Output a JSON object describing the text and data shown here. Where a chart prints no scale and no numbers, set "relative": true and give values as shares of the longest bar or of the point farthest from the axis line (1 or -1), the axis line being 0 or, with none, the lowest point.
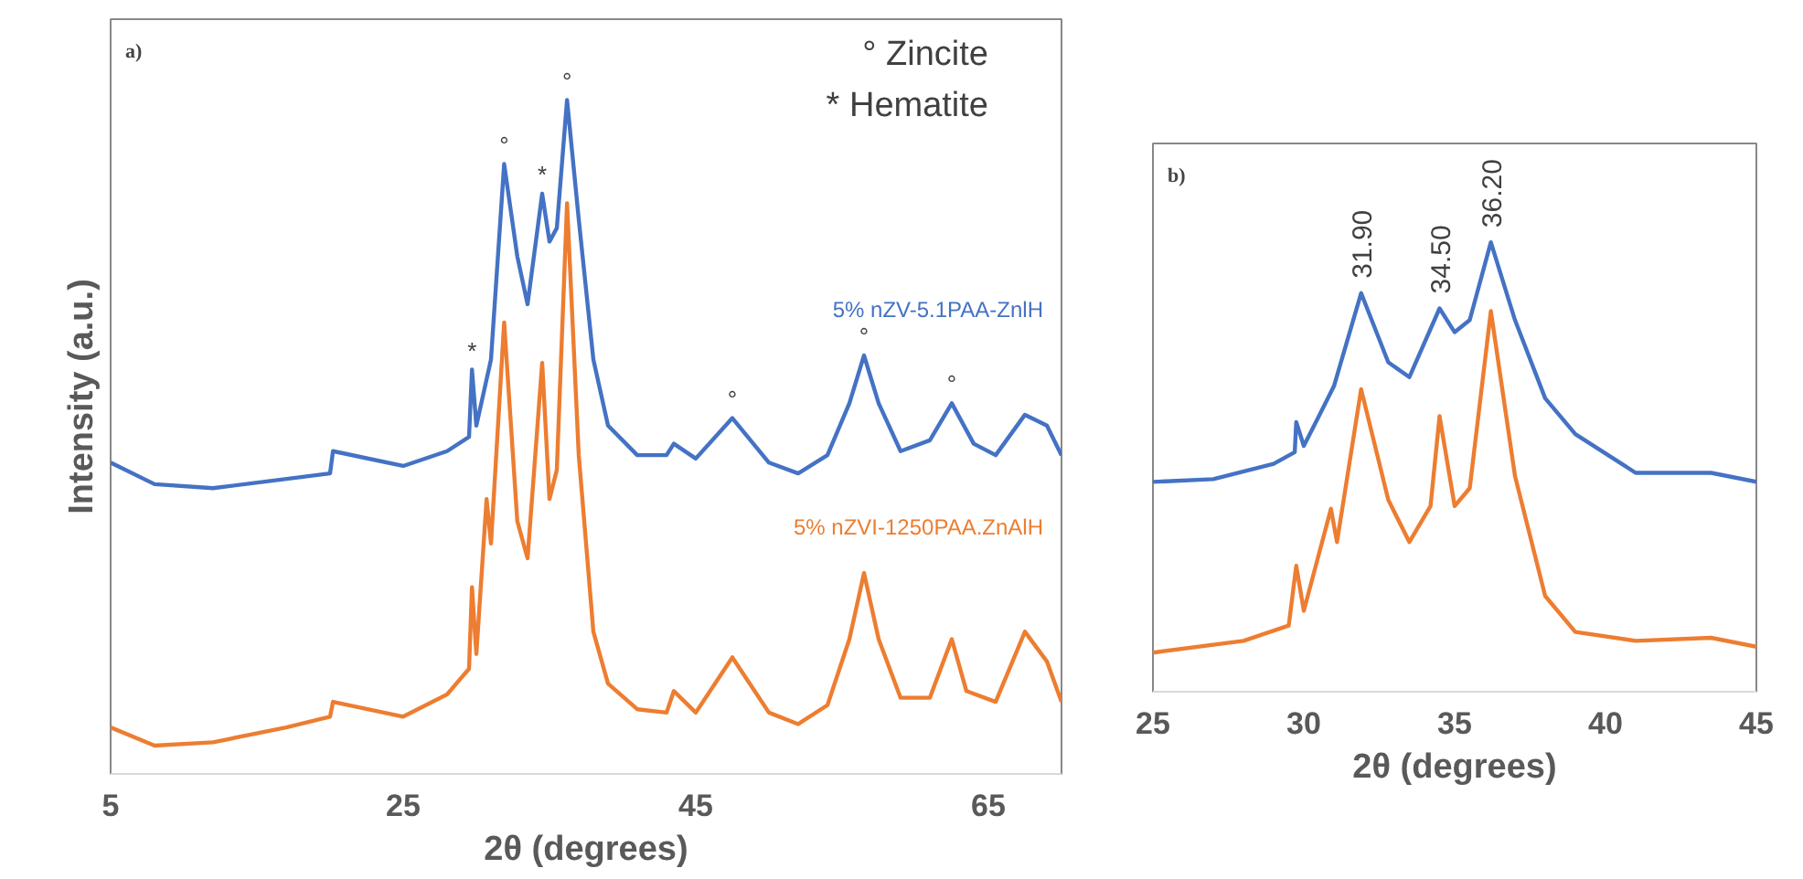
{
  "chart_data": [
    {
      "type": "line",
      "relative": true,
      "xlabel": "2θ (degrees)",
      "ylabel": "Intensity (a.u.)",
      "xlim": [
        5,
        70
      ],
      "xticks": [
        5,
        25,
        45,
        65
      ],
      "grid": false,
      "annotations": [
        "a)",
        "° Zincite",
        "* Hematite",
        {
          "text": "*",
          "x": 29.7,
          "y": 0.6
        },
        {
          "text": "°",
          "x": 31.9,
          "y": 0.905
        },
        {
          "text": "*",
          "x": 34.5,
          "y": 0.861
        },
        {
          "text": "°",
          "x": 36.2,
          "y": 1.0
        },
        {
          "text": "°",
          "x": 47.5,
          "y": 0.528
        },
        {
          "text": "°",
          "x": 56.5,
          "y": 0.621
        },
        {
          "text": "°",
          "x": 62.5,
          "y": 0.55
        }
      ],
      "series": [
        {
          "name": "5% nZV-5.1PAA-ZnlH",
          "color": "#4472c4",
          "x": [
            5,
            8,
            12,
            20,
            20.2,
            25,
            28,
            29.5,
            29.7,
            30,
            31,
            31.9,
            32.8,
            33.5,
            34.5,
            35,
            35.5,
            36.2,
            37,
            38,
            39,
            41,
            43,
            43.5,
            45,
            47.5,
            50,
            52,
            54,
            55.5,
            56.5,
            57.5,
            59,
            61,
            62.5,
            64,
            65.5,
            67.5,
            69,
            70
          ],
          "values": [
            0.462,
            0.43,
            0.424,
            0.446,
            0.479,
            0.457,
            0.479,
            0.5,
            0.6,
            0.517,
            0.615,
            0.905,
            0.768,
            0.697,
            0.861,
            0.79,
            0.81,
            1.0,
            0.823,
            0.615,
            0.517,
            0.473,
            0.473,
            0.49,
            0.468,
            0.528,
            0.462,
            0.446,
            0.473,
            0.55,
            0.621,
            0.55,
            0.479,
            0.495,
            0.55,
            0.49,
            0.473,
            0.533,
            0.517,
            0.473
          ]
        },
        {
          "name": "5% nZVI-1250PAA.ZnAlH",
          "color": "#ed7d31",
          "x": [
            5,
            8,
            12,
            17,
            20,
            20.2,
            25,
            28,
            29.5,
            29.7,
            30,
            30.7,
            31,
            31.9,
            32.8,
            33.5,
            34.5,
            35,
            35.5,
            36.2,
            37,
            38,
            39,
            41,
            43,
            43.5,
            45,
            47.5,
            50,
            52,
            54,
            55.5,
            56.5,
            57.5,
            59,
            61,
            62.5,
            63.5,
            65.5,
            67.5,
            69,
            70
          ],
          "values": [
            0.069,
            0.042,
            0.047,
            0.069,
            0.085,
            0.107,
            0.085,
            0.118,
            0.156,
            0.277,
            0.178,
            0.408,
            0.342,
            0.67,
            0.375,
            0.32,
            0.61,
            0.408,
            0.451,
            0.847,
            0.473,
            0.211,
            0.134,
            0.096,
            0.091,
            0.123,
            0.091,
            0.173,
            0.091,
            0.074,
            0.102,
            0.2,
            0.298,
            0.2,
            0.113,
            0.113,
            0.2,
            0.123,
            0.107,
            0.211,
            0.167,
            0.107
          ]
        }
      ]
    },
    {
      "type": "line",
      "relative": true,
      "xlabel": "2θ (degrees)",
      "xlim": [
        25,
        45
      ],
      "xticks": [
        25,
        30,
        35,
        40,
        45
      ],
      "grid": false,
      "annotations": [
        "b)",
        {
          "text": "31.90",
          "x": 31.9,
          "y": 0.887
        },
        {
          "text": "34.50",
          "x": 34.5,
          "y": 0.853
        },
        {
          "text": "36.20",
          "x": 36.2,
          "y": 1.0
        }
      ],
      "series": [
        {
          "color": "#4472c4",
          "x": [
            25,
            27,
            29,
            29.7,
            29.75,
            30,
            30.5,
            31,
            31.9,
            32.8,
            33.5,
            34.5,
            35,
            35.5,
            36.2,
            37,
            38,
            39,
            41,
            43.5,
            45
          ],
          "values": [
            0.467,
            0.473,
            0.507,
            0.533,
            0.6,
            0.547,
            0.613,
            0.68,
            0.887,
            0.733,
            0.7,
            0.853,
            0.8,
            0.827,
            1.0,
            0.827,
            0.653,
            0.573,
            0.487,
            0.487,
            0.467
          ]
        },
        {
          "color": "#ed7d31",
          "x": [
            25,
            28,
            29.5,
            29.75,
            30,
            30.9,
            31.1,
            31.9,
            32.8,
            33.5,
            34.2,
            34.5,
            35,
            35.5,
            36.2,
            37,
            38,
            39,
            41,
            43.5,
            45
          ],
          "values": [
            0.087,
            0.113,
            0.147,
            0.28,
            0.18,
            0.407,
            0.333,
            0.673,
            0.427,
            0.333,
            0.413,
            0.613,
            0.413,
            0.453,
            0.847,
            0.48,
            0.213,
            0.133,
            0.113,
            0.12,
            0.1
          ]
        }
      ]
    }
  ]
}
